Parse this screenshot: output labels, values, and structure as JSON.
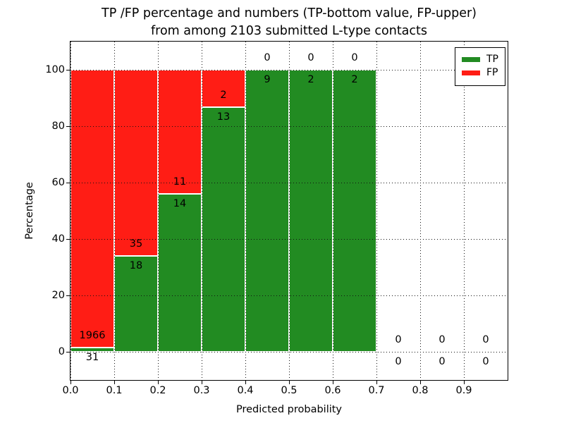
{
  "figure": {
    "background": "#ffffff",
    "title_line1": "TP /FP percentage and numbers (TP-bottom value, FP-upper)",
    "title_line2": "from among 2103 submitted L-type contacts"
  },
  "axes": {
    "xlabel": "Predicted probability",
    "ylabel": "Percentage",
    "ytick_values": [
      0,
      20,
      40,
      60,
      80,
      100
    ],
    "ytick_labels": [
      "0",
      "20",
      "40",
      "60",
      "80",
      "100"
    ],
    "xtick_values": [
      0.0,
      0.1,
      0.2,
      0.3,
      0.4,
      0.5,
      0.6,
      0.7,
      0.8,
      0.9
    ],
    "xtick_labels": [
      "0.0",
      "0.1",
      "0.2",
      "0.3",
      "0.4",
      "0.5",
      "0.6",
      "0.7",
      "0.8",
      "0.9"
    ],
    "ylim": [
      -10,
      110
    ],
    "xlim": [
      0.0,
      1.0
    ],
    "grid": "dotted"
  },
  "legend": {
    "position": "upper-right",
    "items": [
      {
        "label": "TP",
        "color": "#228b22"
      },
      {
        "label": "FP",
        "color": "#ff1d15"
      }
    ]
  },
  "colors": {
    "tp_green": "#228b22",
    "fp_red": "#ff1d15",
    "bar_edge": "#ffffff"
  },
  "chart_data": {
    "type": "bar",
    "stacked": true,
    "normalized_to_percent": true,
    "title": "TP /FP percentage and numbers (TP-bottom value, FP-upper) from among 2103 submitted L-type contacts",
    "xlabel": "Predicted probability",
    "ylabel": "Percentage",
    "ylim": [
      -10,
      110
    ],
    "xlim": [
      0.0,
      1.0
    ],
    "bin_width": 0.1,
    "bin_edges": [
      0.0,
      0.1,
      0.2,
      0.3,
      0.4,
      0.5,
      0.6,
      0.7,
      0.8,
      0.9,
      1.0
    ],
    "categories": [
      "0.0-0.1",
      "0.1-0.2",
      "0.2-0.3",
      "0.3-0.4",
      "0.4-0.5",
      "0.5-0.6",
      "0.6-0.7",
      "0.7-0.8",
      "0.8-0.9",
      "0.9-1.0"
    ],
    "series": [
      {
        "name": "TP",
        "color": "#228b22",
        "counts": [
          31,
          18,
          14,
          13,
          9,
          2,
          2,
          0,
          0,
          0
        ]
      },
      {
        "name": "FP",
        "color": "#ff1d15",
        "counts": [
          1966,
          35,
          11,
          2,
          0,
          0,
          0,
          0,
          0,
          0
        ]
      }
    ],
    "tp_percent_per_bin": [
      1.55,
      33.96,
      56.0,
      86.67,
      100.0,
      100.0,
      100.0,
      0.0,
      0.0,
      0.0
    ],
    "total_submitted": 2103,
    "legend_entries": [
      "TP",
      "FP"
    ],
    "grid": "dotted"
  }
}
